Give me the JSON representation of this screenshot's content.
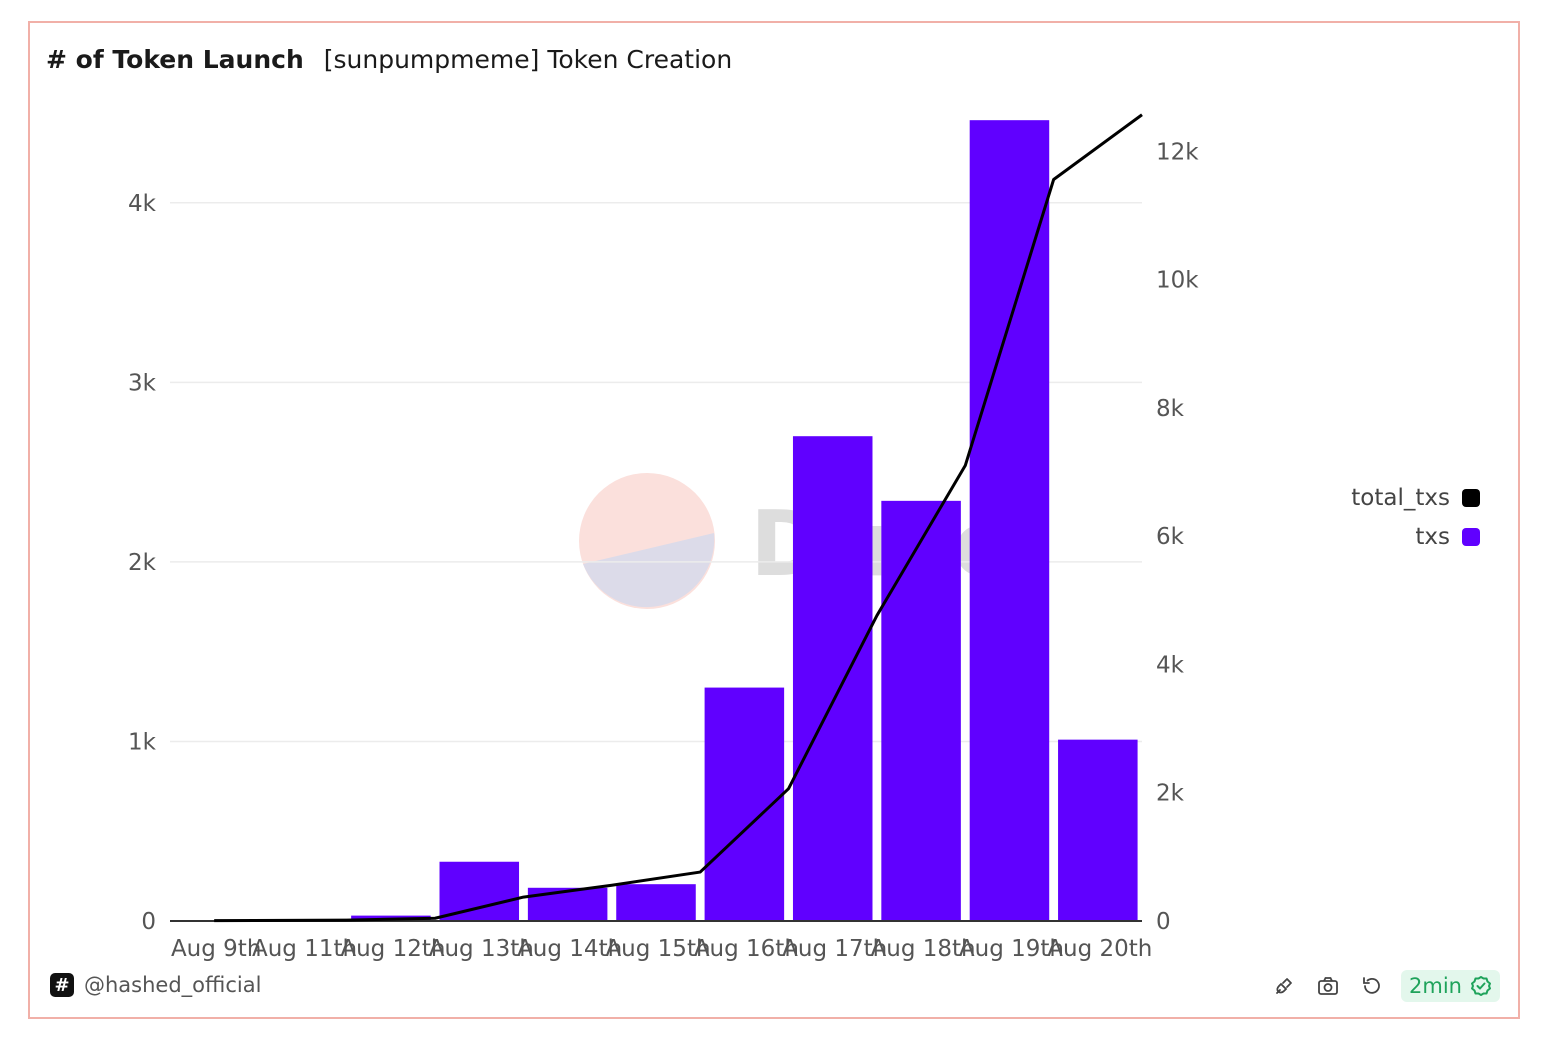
{
  "header": {
    "title": "# of Token Launch",
    "subtitle": "[sunpumpmeme] Token Creation"
  },
  "legend": {
    "items": [
      {
        "label": "total_txs",
        "color": "#000000"
      },
      {
        "label": "txs",
        "color": "#6000ff"
      }
    ]
  },
  "footer": {
    "logo_glyph": "#",
    "author": "@hashed_official",
    "refresh_label": "2min",
    "icons": [
      "plug-icon",
      "camera-icon",
      "refresh-icon",
      "check-circle-icon"
    ]
  },
  "watermark": {
    "text": "Dune"
  },
  "colors": {
    "bar": "#6000ff",
    "line": "#000000",
    "grid": "#ececec",
    "border": "#f1b0a8"
  },
  "chart_data": {
    "type": "bar",
    "title": "# of Token Launch",
    "subtitle": "[sunpumpmeme] Token Creation",
    "categories": [
      "Aug 9th",
      "Aug 11th",
      "Aug 12th",
      "Aug 13th",
      "Aug 14th",
      "Aug 15th",
      "Aug 16th",
      "Aug 17th",
      "Aug 18th",
      "Aug 19th",
      "Aug 20th"
    ],
    "series": [
      {
        "name": "txs",
        "type": "bar",
        "axis": "left",
        "color": "#6000ff",
        "values": [
          5,
          8,
          30,
          330,
          185,
          205,
          1300,
          2700,
          2340,
          4460,
          1010
        ]
      },
      {
        "name": "total_txs",
        "type": "line",
        "axis": "right",
        "color": "#000000",
        "values": [
          5,
          13,
          43,
          373,
          558,
          763,
          2063,
          4763,
          7103,
          11563,
          12573
        ]
      }
    ],
    "left_axis": {
      "ylim": [
        0,
        4500
      ],
      "ticks": [
        0,
        1000,
        2000,
        3000,
        4000
      ],
      "tick_labels": [
        "0",
        "1k",
        "2k",
        "3k",
        "4k"
      ]
    },
    "right_axis": {
      "ylim": [
        0,
        12600
      ],
      "ticks": [
        0,
        2000,
        4000,
        6000,
        8000,
        10000,
        12000
      ],
      "tick_labels": [
        "0",
        "2k",
        "4k",
        "6k",
        "8k",
        "10k",
        "12k"
      ]
    },
    "grid": true,
    "legend_position": "right"
  }
}
